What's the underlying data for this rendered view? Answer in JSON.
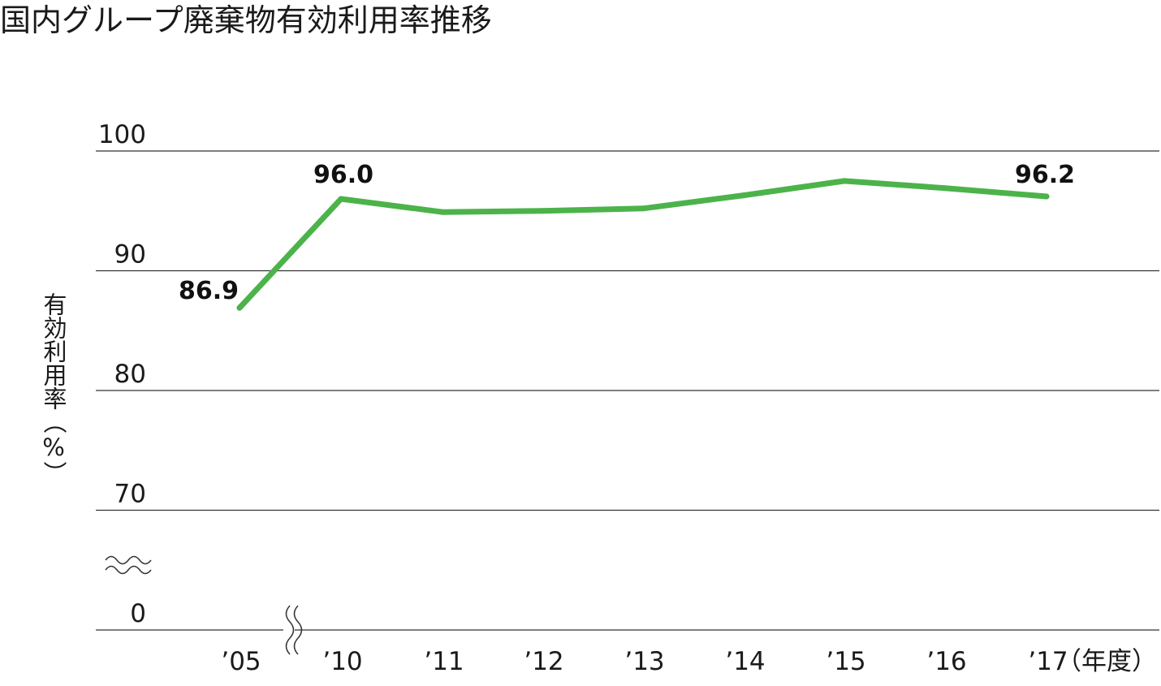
{
  "title": "国内グループ廃棄物有効利用率推移",
  "chart_data": {
    "type": "line",
    "title": "国内グループ廃棄物有効利用率推移",
    "ylabel": "有効利用率（%）",
    "xlabel": "（年度）",
    "categories": [
      "’05",
      "’10",
      "’11",
      "’12",
      "’13",
      "’14",
      "’15",
      "’16",
      "’17"
    ],
    "y_ticks": [
      "100",
      "90",
      "80",
      "70",
      "0"
    ],
    "ylim": [
      70,
      100
    ],
    "axis_break": true,
    "series": [
      {
        "values": [
          86.9,
          96.0,
          94.9,
          95.0,
          95.2,
          96.3,
          97.5,
          96.9,
          96.2
        ],
        "color": "#4cb34a"
      }
    ],
    "data_labels": [
      {
        "index": 0,
        "text": "86.9"
      },
      {
        "index": 1,
        "text": "96.0"
      },
      {
        "index": 8,
        "text": "96.2"
      }
    ],
    "grid": true
  }
}
